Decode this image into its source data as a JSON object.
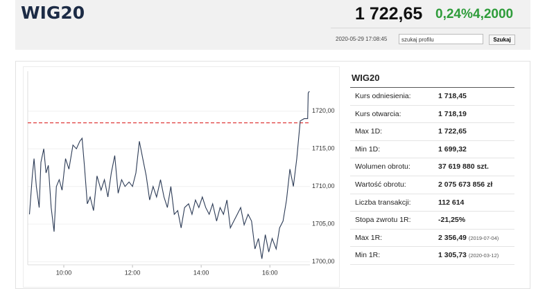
{
  "header": {
    "title": "WIG20",
    "price": "1 722,65",
    "change_pct": "0,24%",
    "change": "4,2000",
    "timestamp": "2020-05-29 17:08:45",
    "search_placeholder": "szukaj profilu",
    "search_button": "Szukaj"
  },
  "chart_data": {
    "type": "line",
    "color": "#2b3a55",
    "x": [
      "09:00",
      "09:05",
      "09:08",
      "09:12",
      "09:17",
      "09:20",
      "09:25",
      "09:29",
      "09:33",
      "09:38",
      "09:43",
      "09:47",
      "09:52",
      "09:57",
      "10:03",
      "10:09",
      "10:16",
      "10:22",
      "10:28",
      "10:32",
      "10:36",
      "10:41",
      "10:46",
      "10:52",
      "10:58",
      "11:05",
      "11:11",
      "11:17",
      "11:23",
      "11:29",
      "11:35",
      "11:41",
      "11:47",
      "11:54",
      "12:00",
      "12:06",
      "12:12",
      "12:18",
      "12:24",
      "12:30",
      "12:36",
      "12:42",
      "12:49",
      "12:55",
      "13:01",
      "13:07",
      "13:13",
      "13:19",
      "13:25",
      "13:31",
      "13:38",
      "13:44",
      "13:50",
      "13:56",
      "14:02",
      "14:08",
      "14:14",
      "14:20",
      "14:27",
      "14:33",
      "14:39",
      "14:45",
      "14:51",
      "14:57",
      "15:03",
      "15:09",
      "15:15",
      "15:22",
      "15:28",
      "15:34",
      "15:40",
      "15:46",
      "15:52",
      "15:58",
      "16:04",
      "16:11",
      "16:17",
      "16:23",
      "16:29",
      "16:35",
      "16:41",
      "16:47",
      "16:53",
      "17:00",
      "17:06",
      "17:07",
      "17:09"
    ],
    "values": [
      1706.3,
      1711.4,
      1713.7,
      1710.0,
      1707.2,
      1713.2,
      1715.0,
      1711.8,
      1712.8,
      1707.2,
      1704.0,
      1710.0,
      1710.9,
      1709.5,
      1713.7,
      1712.3,
      1715.5,
      1715.0,
      1716.0,
      1716.4,
      1712.8,
      1707.7,
      1708.6,
      1706.8,
      1711.4,
      1709.5,
      1710.9,
      1708.6,
      1711.8,
      1714.1,
      1709.1,
      1710.9,
      1710.0,
      1710.6,
      1710.0,
      1711.8,
      1716.0,
      1713.7,
      1711.4,
      1708.2,
      1710.0,
      1708.6,
      1710.9,
      1708.6,
      1707.2,
      1710.0,
      1706.3,
      1706.8,
      1704.5,
      1707.2,
      1707.7,
      1706.3,
      1708.2,
      1707.2,
      1708.6,
      1707.2,
      1706.3,
      1707.7,
      1705.4,
      1707.2,
      1706.3,
      1708.2,
      1704.5,
      1705.4,
      1706.3,
      1707.2,
      1704.9,
      1706.3,
      1705.4,
      1701.7,
      1703.1,
      1700.4,
      1703.6,
      1701.3,
      1703.1,
      1701.7,
      1704.5,
      1705.4,
      1708.2,
      1712.3,
      1710.0,
      1713.7,
      1718.7,
      1719.0,
      1719.0,
      1722.4,
      1722.65
    ],
    "xlim": [
      "08:57",
      "17:10"
    ],
    "xticks": [
      "10:00",
      "12:00",
      "14:00",
      "16:00"
    ],
    "ylim": [
      1699.6,
      1725.3
    ],
    "yticks": [
      {
        "value": 1700,
        "label": "1700,00"
      },
      {
        "value": 1705,
        "label": "1705,00"
      },
      {
        "value": 1710,
        "label": "1710,00"
      },
      {
        "value": 1715,
        "label": "1715,00"
      },
      {
        "value": 1720,
        "label": "1720,00"
      }
    ],
    "reference": {
      "value": 1718.45,
      "color": "#e03a3a"
    },
    "grid": true
  },
  "table": {
    "title": "WIG20",
    "rows": [
      {
        "label": "Kurs odniesienia:",
        "value": "1 718,45"
      },
      {
        "label": "Kurs otwarcia:",
        "value": "1 718,19"
      },
      {
        "label": "Max 1D:",
        "value": "1 722,65"
      },
      {
        "label": "Min 1D:",
        "value": "1 699,32"
      },
      {
        "label": "Wolumen obrotu:",
        "value": "37 619 880 szt."
      },
      {
        "label": "Wartość obrotu:",
        "value": "2 075 673 856 zł"
      },
      {
        "label": "Liczba transakcji:",
        "value": "112 614"
      },
      {
        "label": "Stopa zwrotu 1R:",
        "value": "-21,25%"
      },
      {
        "label": "Max 1R:",
        "value": "2 356,49",
        "date": "(2019-07-04)"
      },
      {
        "label": "Min 1R:",
        "value": "1 305,73",
        "date": "(2020-03-12)"
      }
    ]
  }
}
